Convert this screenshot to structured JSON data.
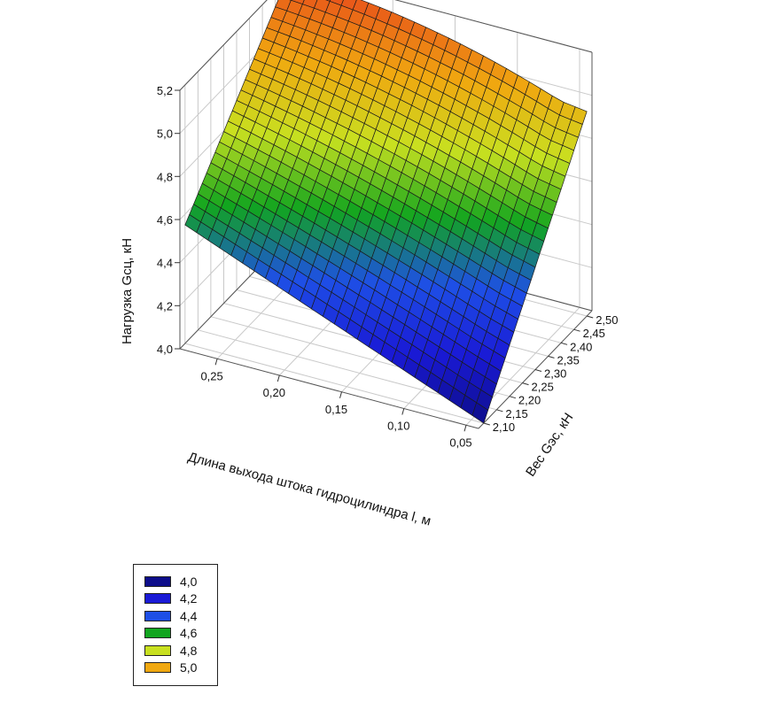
{
  "chart_data": {
    "type": "surface3d",
    "zlabel": "Нагрузка Gсц, кН",
    "xlabel": "Длина выхода штока гидроцилиндра l, м",
    "ylabel": "Вес Gэс, кН",
    "x_ticks": [
      "0,25",
      "0,20",
      "0,15",
      "0,10",
      "0,05"
    ],
    "y_ticks": [
      "2,10",
      "2,15",
      "2,20",
      "2,25",
      "2,30",
      "2,35",
      "2,40",
      "2,45",
      "2,50"
    ],
    "z_ticks": [
      "4,0",
      "4,2",
      "4,4",
      "4,6",
      "4,8",
      "5,0",
      "5,2"
    ],
    "xlim": [
      0.04,
      0.28
    ],
    "ylim": [
      2.08,
      2.52
    ],
    "zlim": [
      4.0,
      5.2
    ],
    "grid": true,
    "surface_corners": [
      {
        "l": 0.28,
        "G": 2.1,
        "Gsc": 4.55
      },
      {
        "l": 0.04,
        "G": 2.1,
        "Gsc": 4.0
      },
      {
        "l": 0.28,
        "G": 2.5,
        "Gsc": 5.13
      },
      {
        "l": 0.04,
        "G": 2.5,
        "Gsc": 4.95
      }
    ],
    "surface_peak": {
      "l": 0.21,
      "G": 2.5,
      "Gsc": 5.18
    },
    "colorscale": [
      {
        "value": 4.0,
        "color": "#0d0d8a"
      },
      {
        "value": 4.2,
        "color": "#1a1ad6"
      },
      {
        "value": 4.4,
        "color": "#1e4fe6"
      },
      {
        "value": 4.6,
        "color": "#12a51f"
      },
      {
        "value": 4.8,
        "color": "#c8e020"
      },
      {
        "value": 5.0,
        "color": "#f0a810"
      },
      {
        "value": 5.2,
        "color": "#e8501a"
      }
    ],
    "legend": {
      "placement": "bottom-left",
      "entries": [
        {
          "label": "4,0",
          "color": "#0d0d8a"
        },
        {
          "label": "4,2",
          "color": "#1a1ad6"
        },
        {
          "label": "4,4",
          "color": "#1e4fe6"
        },
        {
          "label": "4,6",
          "color": "#12a51f"
        },
        {
          "label": "4,8",
          "color": "#c8e020"
        },
        {
          "label": "5,0",
          "color": "#f0a810"
        }
      ]
    }
  }
}
